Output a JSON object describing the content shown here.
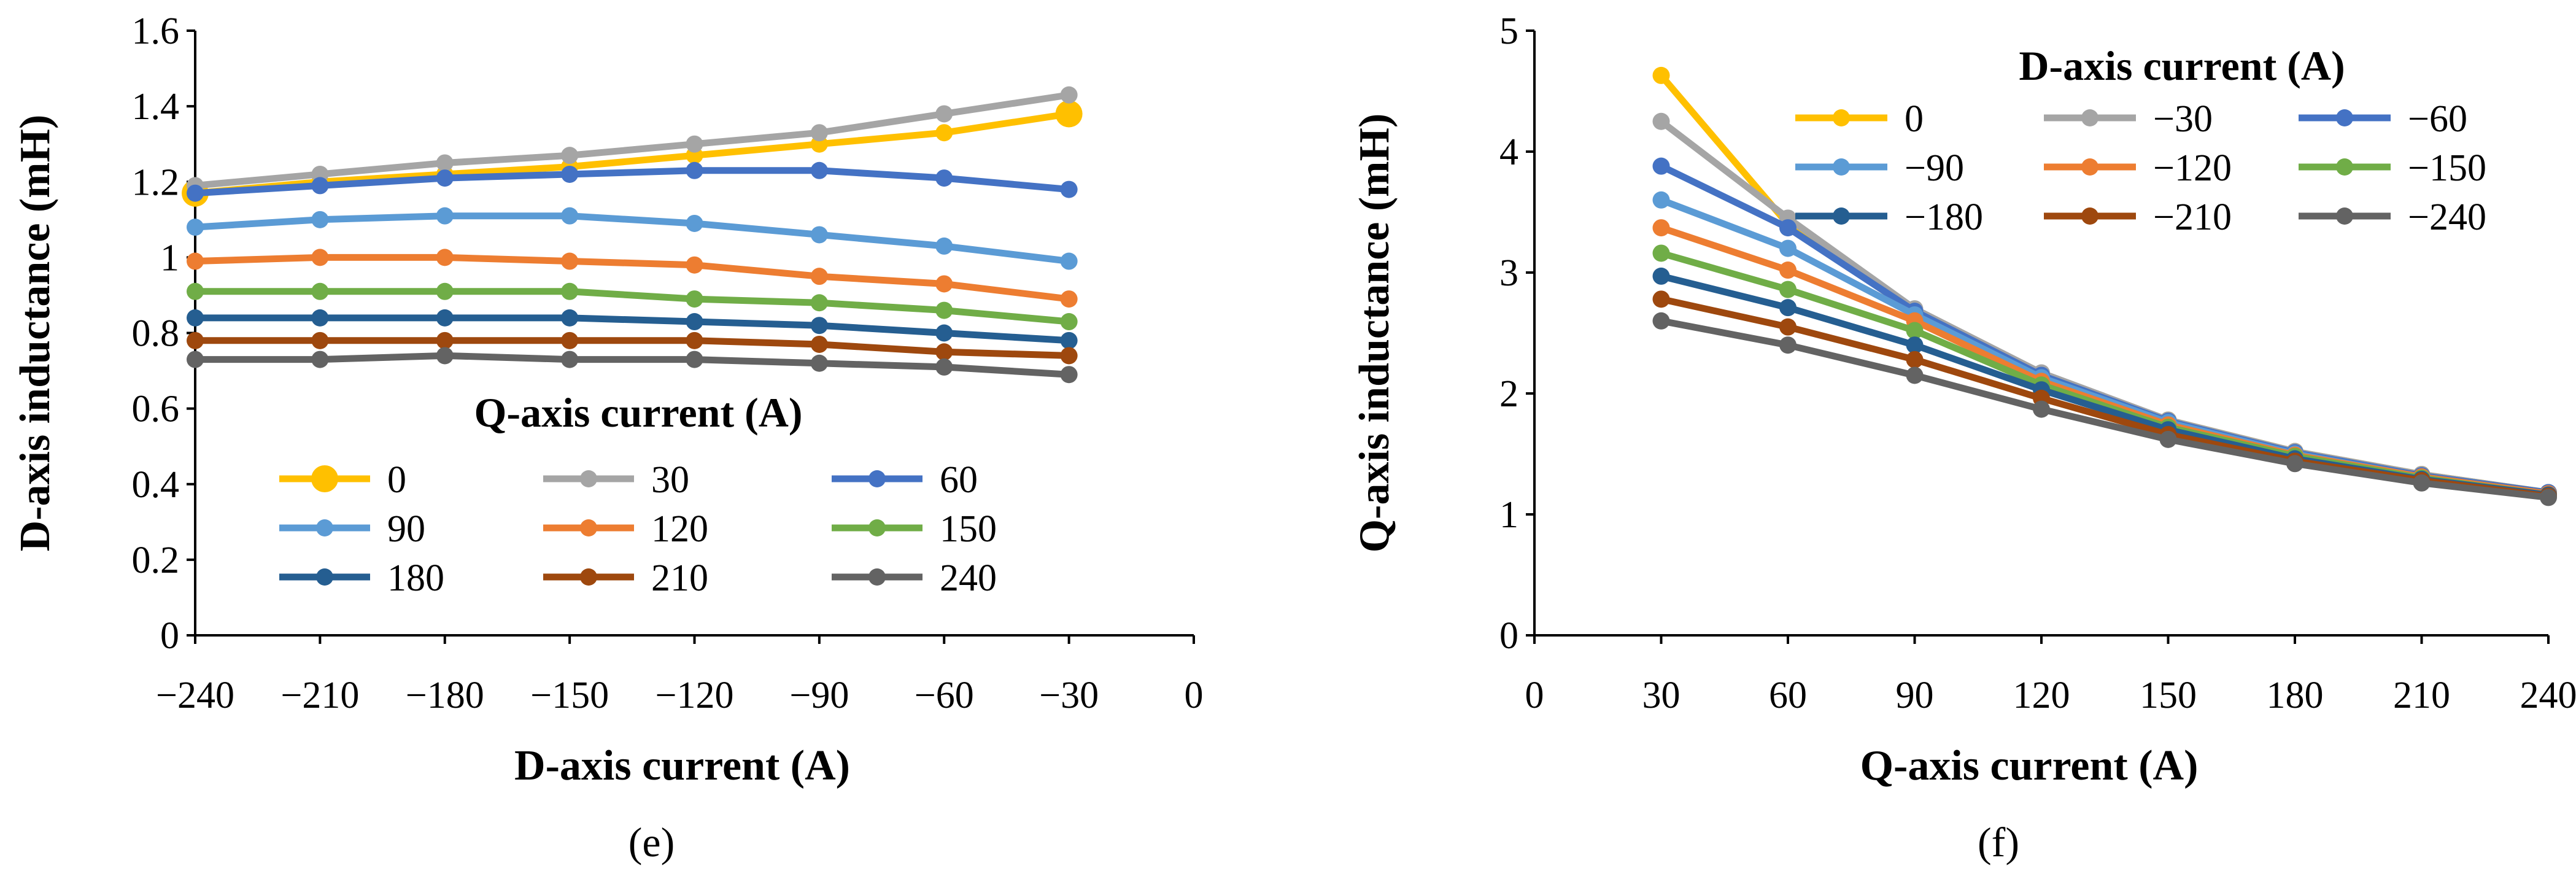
{
  "colors": {
    "axis": "#000000",
    "series": [
      "#ffc000",
      "#a5a5a5",
      "#4472c4",
      "#5b9bd5",
      "#ed7d31",
      "#70ad47",
      "#255e91",
      "#9e480e",
      "#636363"
    ]
  },
  "chart_data": [
    {
      "type": "line",
      "panel_label": "(e)",
      "xlabel": "D-axis current (A)",
      "ylabel": "D-axis inductance (mH)",
      "xlim": [
        -240,
        0
      ],
      "ylim": [
        0,
        1.6
      ],
      "xticks": [
        -240,
        -210,
        -180,
        -150,
        -120,
        -90,
        -60,
        -30,
        0
      ],
      "yticks": [
        0,
        0.2,
        0.4,
        0.6,
        0.8,
        1,
        1.2,
        1.4,
        1.6
      ],
      "xtick_labels": [
        "−240",
        "−210",
        "−180",
        "−150",
        "−120",
        "−90",
        "−60",
        "−30",
        "0"
      ],
      "ytick_labels": [
        "0",
        "0.2",
        "0.4",
        "0.6",
        "0.8",
        "1",
        "1.2",
        "1.4",
        "1.6"
      ],
      "grid": false,
      "legend": {
        "title": "Q-axis current (A)",
        "placement": "bottom-left inside plot",
        "columns": 3
      },
      "x": [
        -240,
        -210,
        -180,
        -150,
        -120,
        -90,
        -60,
        -30
      ],
      "series": [
        {
          "name": "0",
          "values": [
            1.17,
            1.2,
            1.22,
            1.24,
            1.27,
            1.3,
            1.33,
            1.38
          ]
        },
        {
          "name": "30",
          "values": [
            1.19,
            1.22,
            1.25,
            1.27,
            1.3,
            1.33,
            1.38,
            1.43
          ]
        },
        {
          "name": "60",
          "values": [
            1.17,
            1.19,
            1.21,
            1.22,
            1.23,
            1.23,
            1.21,
            1.18
          ]
        },
        {
          "name": "90",
          "values": [
            1.08,
            1.1,
            1.11,
            1.11,
            1.09,
            1.06,
            1.03,
            0.99
          ]
        },
        {
          "name": "120",
          "values": [
            0.99,
            1.0,
            1.0,
            0.99,
            0.98,
            0.95,
            0.93,
            0.89
          ]
        },
        {
          "name": "150",
          "values": [
            0.91,
            0.91,
            0.91,
            0.91,
            0.89,
            0.88,
            0.86,
            0.83
          ]
        },
        {
          "name": "180",
          "values": [
            0.84,
            0.84,
            0.84,
            0.84,
            0.83,
            0.82,
            0.8,
            0.78
          ]
        },
        {
          "name": "210",
          "values": [
            0.78,
            0.78,
            0.78,
            0.78,
            0.78,
            0.77,
            0.75,
            0.74
          ]
        },
        {
          "name": "240",
          "values": [
            0.73,
            0.73,
            0.74,
            0.73,
            0.73,
            0.72,
            0.71,
            0.69
          ]
        }
      ]
    },
    {
      "type": "line",
      "panel_label": "(f)",
      "xlabel": "Q-axis current (A)",
      "ylabel": "Q-axis inductance (mH)",
      "xlim": [
        0,
        240
      ],
      "ylim": [
        0,
        5
      ],
      "xticks": [
        0,
        30,
        60,
        90,
        120,
        150,
        180,
        210,
        240
      ],
      "yticks": [
        0,
        1,
        2,
        3,
        4,
        5
      ],
      "xtick_labels": [
        "0",
        "30",
        "60",
        "90",
        "120",
        "150",
        "180",
        "210",
        "240"
      ],
      "ytick_labels": [
        "0",
        "1",
        "2",
        "3",
        "4",
        "5"
      ],
      "grid": false,
      "legend": {
        "title": "D-axis current (A)",
        "placement": "top-right inside plot",
        "columns": 3
      },
      "x": [
        30,
        60,
        90,
        120,
        150,
        180,
        210,
        240
      ],
      "series": [
        {
          "name": "0",
          "values": [
            4.63,
            3.4,
            2.67,
            2.15,
            1.78,
            1.52,
            1.33,
            1.18
          ]
        },
        {
          "name": "−30",
          "values": [
            4.25,
            3.45,
            2.7,
            2.17,
            1.78,
            1.52,
            1.33,
            1.18
          ]
        },
        {
          "name": "−60",
          "values": [
            3.88,
            3.37,
            2.68,
            2.15,
            1.77,
            1.51,
            1.32,
            1.18
          ]
        },
        {
          "name": "−90",
          "values": [
            3.6,
            3.2,
            2.65,
            2.13,
            1.76,
            1.5,
            1.31,
            1.17
          ]
        },
        {
          "name": "−120",
          "values": [
            3.37,
            3.02,
            2.6,
            2.1,
            1.74,
            1.49,
            1.31,
            1.17
          ]
        },
        {
          "name": "−150",
          "values": [
            3.16,
            2.86,
            2.52,
            2.07,
            1.72,
            1.48,
            1.3,
            1.16
          ]
        },
        {
          "name": "−180",
          "values": [
            2.97,
            2.71,
            2.4,
            2.03,
            1.7,
            1.46,
            1.29,
            1.16
          ]
        },
        {
          "name": "−210",
          "values": [
            2.78,
            2.55,
            2.28,
            1.96,
            1.66,
            1.44,
            1.28,
            1.15
          ]
        },
        {
          "name": "−240",
          "values": [
            2.6,
            2.4,
            2.15,
            1.87,
            1.62,
            1.42,
            1.26,
            1.14
          ]
        }
      ]
    }
  ]
}
